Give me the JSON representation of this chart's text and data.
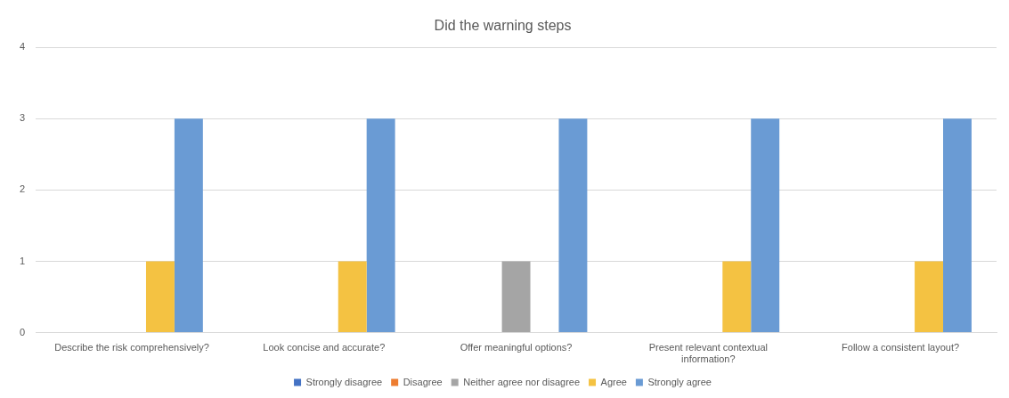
{
  "chart_data": {
    "type": "bar",
    "title": "Did the warning steps",
    "categories": [
      "Describe the risk comprehensively?",
      "Look concise and accurate?",
      "Offer meaningful options?",
      "Present relevant contextual information?",
      "Follow a consistent layout?"
    ],
    "series": [
      {
        "name": "Strongly disagree",
        "color": "#4472c4",
        "values": [
          0,
          0,
          0,
          0,
          0
        ]
      },
      {
        "name": "Disagree",
        "color": "#ed7d31",
        "values": [
          0,
          0,
          0,
          0,
          0
        ]
      },
      {
        "name": "Neither agree nor disagree",
        "color": "#a5a5a5",
        "values": [
          0,
          0,
          1,
          0,
          0
        ]
      },
      {
        "name": "Agree",
        "color": "#f4c242",
        "values": [
          1,
          1,
          0,
          1,
          1
        ]
      },
      {
        "name": "Strongly agree",
        "color": "#6a9bd4",
        "values": [
          3,
          3,
          3,
          3,
          3
        ]
      }
    ],
    "ylim": [
      0,
      4
    ],
    "yticks": [
      0,
      1,
      2,
      3,
      4
    ],
    "grid": "y",
    "legend": "bottom"
  }
}
